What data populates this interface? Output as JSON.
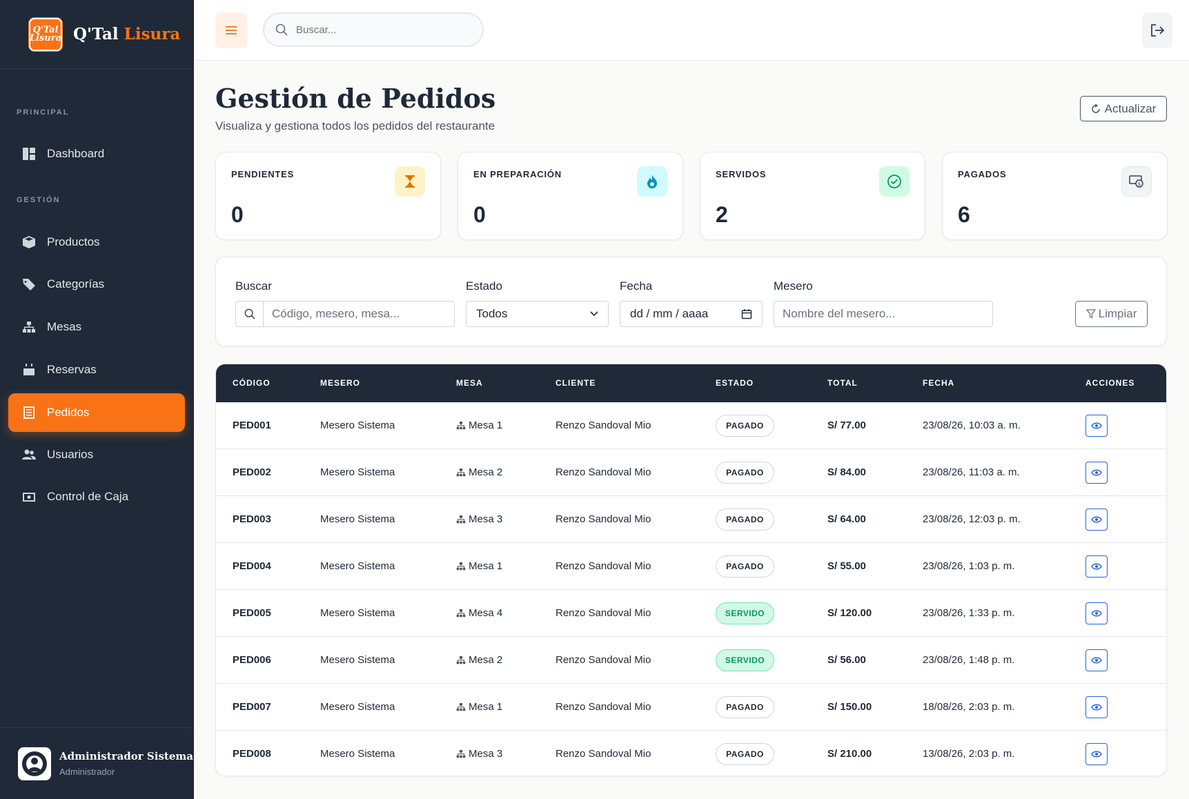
{
  "brand": {
    "logo_text": "Q'Tal Lisura",
    "name_main": "Q'Tal",
    "name_accent": "Lisura"
  },
  "sidebar": {
    "section_principal": "PRINCIPAL",
    "section_gestion": "GESTIÓN",
    "items": [
      {
        "label": "Dashboard",
        "icon": "dashboard-icon"
      },
      {
        "label": "Productos",
        "icon": "box-icon"
      },
      {
        "label": "Categorías",
        "icon": "tag-icon"
      },
      {
        "label": "Mesas",
        "icon": "sitemap-icon"
      },
      {
        "label": "Reservas",
        "icon": "calendar-icon"
      },
      {
        "label": "Pedidos",
        "icon": "receipt-icon",
        "active": true
      },
      {
        "label": "Usuarios",
        "icon": "users-icon"
      },
      {
        "label": "Control de Caja",
        "icon": "cash-icon"
      }
    ],
    "user": {
      "name": "Administrador Sistema",
      "role": "Administrador"
    }
  },
  "topbar": {
    "search_placeholder": "Buscar..."
  },
  "page": {
    "title": "Gestión de Pedidos",
    "subtitle": "Visualiza y gestiona todos los pedidos del restaurante",
    "refresh_label": "Actualizar"
  },
  "stats": [
    {
      "label": "PENDIENTES",
      "value": "0",
      "icon": "hourglass-icon",
      "bg": "#fef3c7",
      "color": "#d97706"
    },
    {
      "label": "EN PREPARACIÓN",
      "value": "0",
      "icon": "fire-icon",
      "bg": "#cffafe",
      "color": "#0891b2"
    },
    {
      "label": "SERVIDOS",
      "value": "2",
      "icon": "check-circle-icon",
      "bg": "#d1fae5",
      "color": "#059669"
    },
    {
      "label": "PAGADOS",
      "value": "6",
      "icon": "money-icon",
      "bg": "#f3f4f6",
      "color": "#374151"
    }
  ],
  "filters": {
    "search_label": "Buscar",
    "search_placeholder": "Código, mesero, mesa...",
    "estado_label": "Estado",
    "estado_value": "Todos",
    "fecha_label": "Fecha",
    "fecha_placeholder": "dd / mm / aaaa",
    "mesero_label": "Mesero",
    "mesero_placeholder": "Nombre del mesero...",
    "clear_label": "Limpiar"
  },
  "table": {
    "headers": [
      "CÓDIGO",
      "MESERO",
      "MESA",
      "CLIENTE",
      "ESTADO",
      "TOTAL",
      "FECHA",
      "ACCIONES"
    ],
    "rows": [
      {
        "codigo": "PED001",
        "mesero": "Mesero Sistema",
        "mesa": "Mesa 1",
        "cliente": "Renzo Sandoval Mio",
        "estado": "PAGADO",
        "total": "S/ 77.00",
        "fecha": "23/08/26, 10:03 a. m."
      },
      {
        "codigo": "PED002",
        "mesero": "Mesero Sistema",
        "mesa": "Mesa 2",
        "cliente": "Renzo Sandoval Mio",
        "estado": "PAGADO",
        "total": "S/ 84.00",
        "fecha": "23/08/26, 11:03 a. m."
      },
      {
        "codigo": "PED003",
        "mesero": "Mesero Sistema",
        "mesa": "Mesa 3",
        "cliente": "Renzo Sandoval Mio",
        "estado": "PAGADO",
        "total": "S/ 64.00",
        "fecha": "23/08/26, 12:03 p. m."
      },
      {
        "codigo": "PED004",
        "mesero": "Mesero Sistema",
        "mesa": "Mesa 1",
        "cliente": "Renzo Sandoval Mio",
        "estado": "PAGADO",
        "total": "S/ 55.00",
        "fecha": "23/08/26, 1:03 p. m."
      },
      {
        "codigo": "PED005",
        "mesero": "Mesero Sistema",
        "mesa": "Mesa 4",
        "cliente": "Renzo Sandoval Mio",
        "estado": "SERVIDO",
        "total": "S/ 120.00",
        "fecha": "23/08/26, 1:33 p. m."
      },
      {
        "codigo": "PED006",
        "mesero": "Mesero Sistema",
        "mesa": "Mesa 2",
        "cliente": "Renzo Sandoval Mio",
        "estado": "SERVIDO",
        "total": "S/ 56.00",
        "fecha": "23/08/26, 1:48 p. m."
      },
      {
        "codigo": "PED007",
        "mesero": "Mesero Sistema",
        "mesa": "Mesa 1",
        "cliente": "Renzo Sandoval Mio",
        "estado": "PAGADO",
        "total": "S/ 150.00",
        "fecha": "18/08/26, 2:03 p. m."
      },
      {
        "codigo": "PED008",
        "mesero": "Mesero Sistema",
        "mesa": "Mesa 3",
        "cliente": "Renzo Sandoval Mio",
        "estado": "PAGADO",
        "total": "S/ 210.00",
        "fecha": "13/08/26, 2:03 p. m."
      }
    ]
  }
}
